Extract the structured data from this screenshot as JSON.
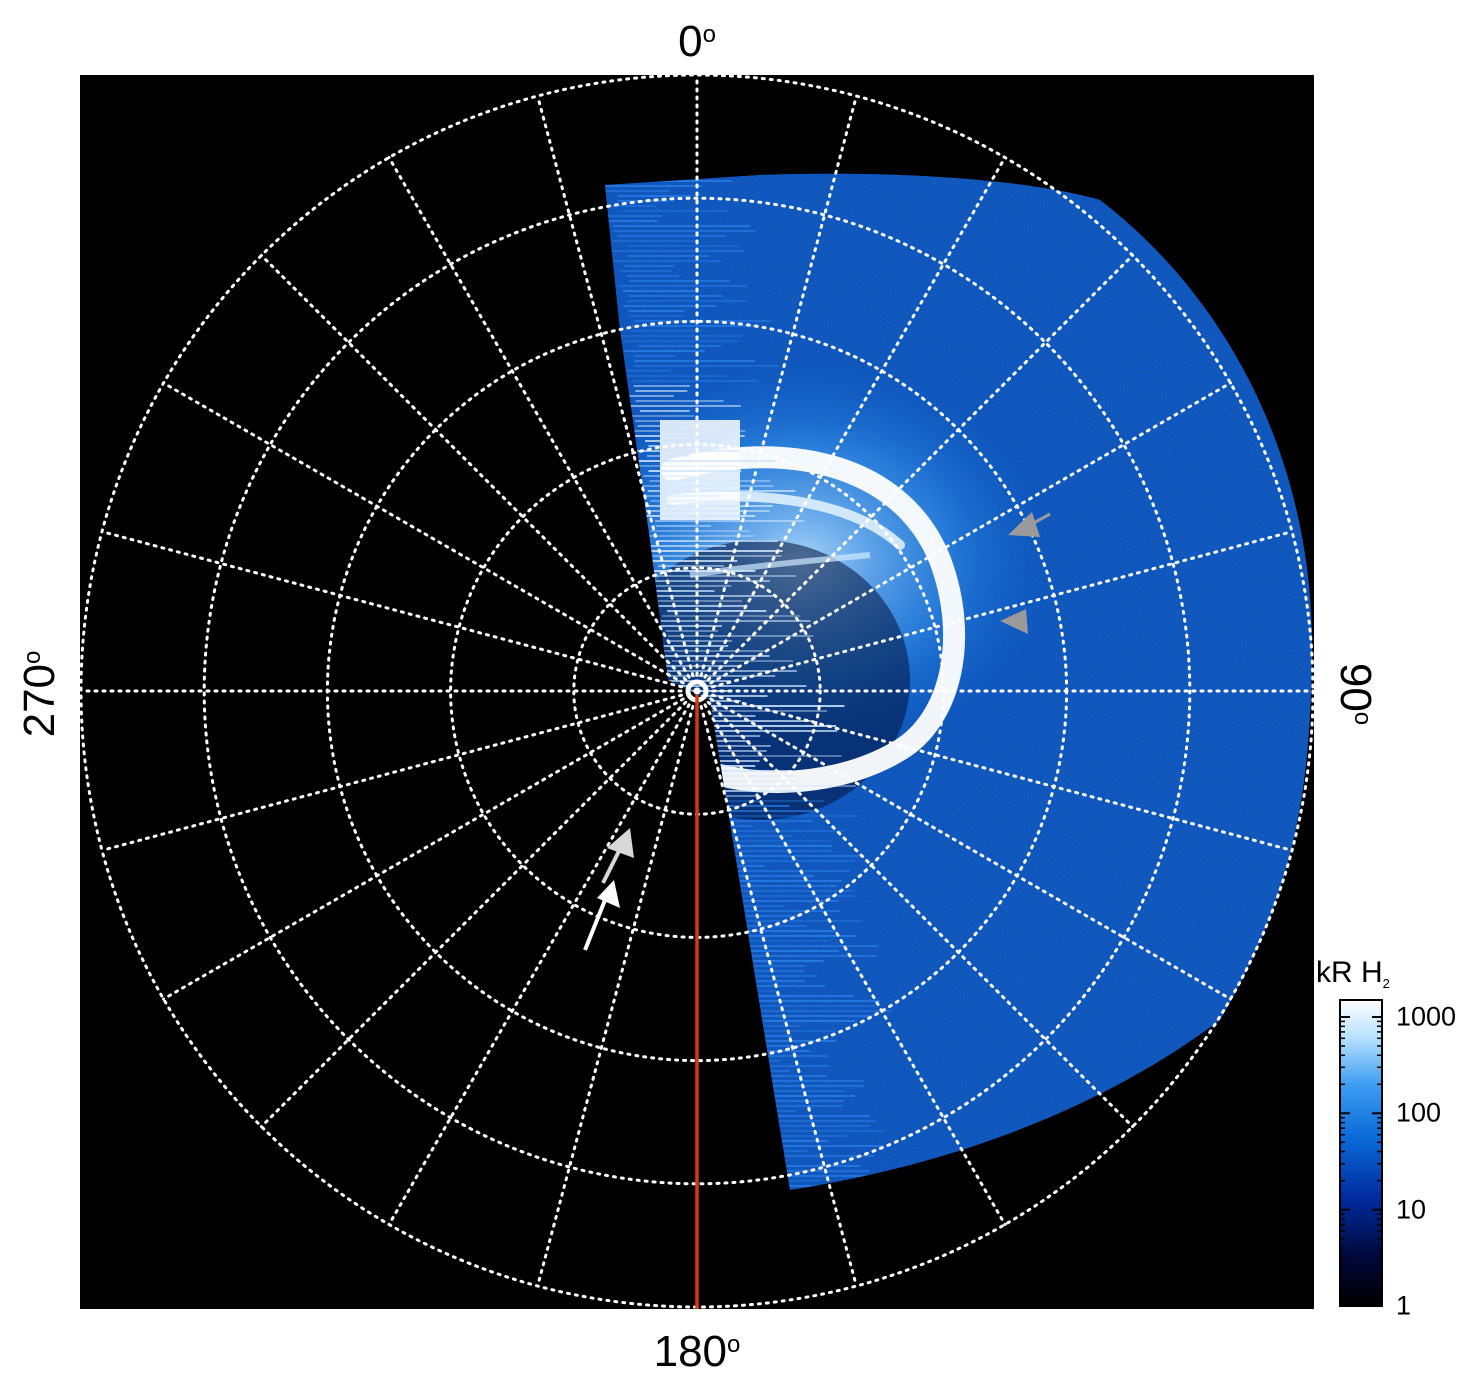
{
  "axes": {
    "top_label": "0",
    "right_label": "90",
    "bottom_label": "180",
    "left_label": "270",
    "degree_symbol": "o"
  },
  "polar_grid": {
    "ring_count": 5,
    "spoke_step_deg": 15,
    "line_style": "dotted",
    "line_color": "#ffffff"
  },
  "colorbar": {
    "title_main": "kR H",
    "title_sub": "2",
    "scale": "log",
    "range": [
      1,
      1500
    ],
    "ticks": [
      {
        "value": 1,
        "label": "1"
      },
      {
        "value": 10,
        "label": "10"
      },
      {
        "value": 100,
        "label": "100"
      },
      {
        "value": 1000,
        "label": "1000"
      }
    ],
    "colors": [
      "#000000",
      "#00083a",
      "#002a9e",
      "#0a6ad8",
      "#3c9cf2",
      "#b9e2ff",
      "#ffffff"
    ]
  },
  "markers": {
    "meridian_line_color": "#d63a10",
    "gray_arrow_color": "#9a9a9a",
    "white_arrow_color": "#ffffff",
    "light_arrow_color": "#d8d8d8"
  },
  "colors": {
    "plot_background": "#000000",
    "page_background": "#ffffff"
  }
}
